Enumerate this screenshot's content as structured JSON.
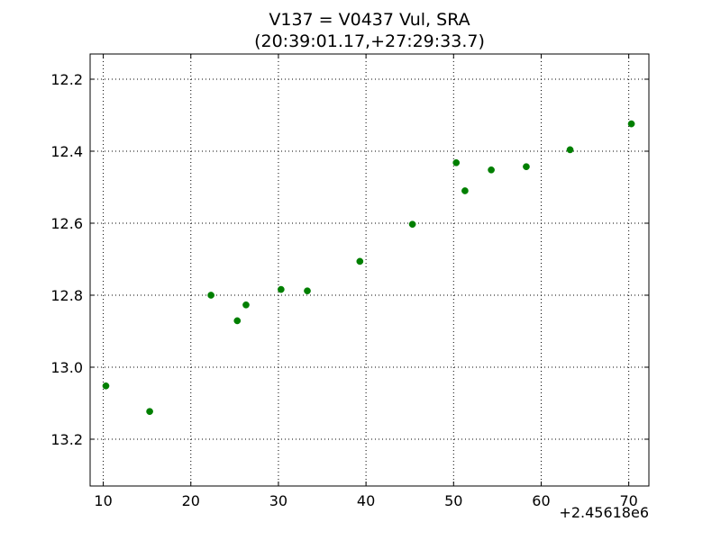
{
  "chart_data": {
    "type": "scatter",
    "title": "V137 = V0437 Vul, SRA",
    "subtitle": "(20:39:01.17,+27:29:33.7)",
    "xlabel": "",
    "ylabel": "",
    "x_offset_label": "+2.45618e6",
    "xlim": [
      8.5,
      72.3
    ],
    "ylim": [
      13.33,
      12.13
    ],
    "y_inverted": true,
    "grid": true,
    "marker_color": "#007f00",
    "x_ticks": [
      10,
      20,
      30,
      40,
      50,
      60,
      70
    ],
    "x_tick_labels": [
      "10",
      "20",
      "30",
      "40",
      "50",
      "60",
      "70"
    ],
    "y_ticks": [
      12.2,
      12.4,
      12.6,
      12.8,
      13.0,
      13.2
    ],
    "y_tick_labels": [
      "12.2",
      "12.4",
      "12.6",
      "12.8",
      "13.0",
      "13.2"
    ],
    "points": [
      {
        "x": 10.3,
        "y": 13.052
      },
      {
        "x": 15.3,
        "y": 13.123
      },
      {
        "x": 22.3,
        "y": 12.8
      },
      {
        "x": 25.3,
        "y": 12.871
      },
      {
        "x": 26.3,
        "y": 12.827
      },
      {
        "x": 30.3,
        "y": 12.784
      },
      {
        "x": 33.3,
        "y": 12.788
      },
      {
        "x": 39.3,
        "y": 12.706
      },
      {
        "x": 45.3,
        "y": 12.603
      },
      {
        "x": 50.3,
        "y": 12.432
      },
      {
        "x": 51.3,
        "y": 12.51
      },
      {
        "x": 54.3,
        "y": 12.452
      },
      {
        "x": 58.3,
        "y": 12.443
      },
      {
        "x": 63.3,
        "y": 12.396
      },
      {
        "x": 70.3,
        "y": 12.324
      }
    ]
  }
}
